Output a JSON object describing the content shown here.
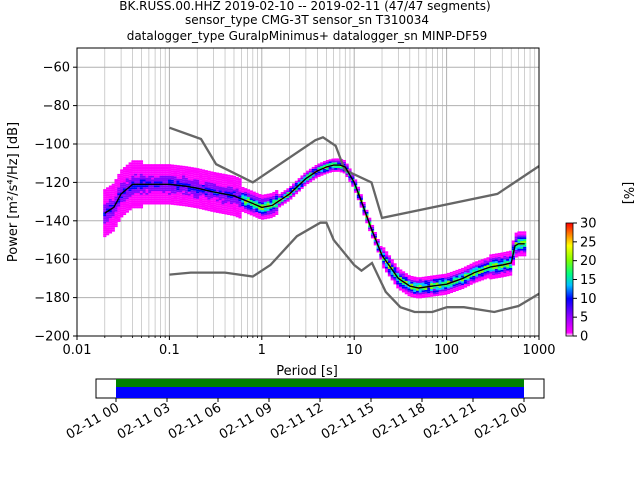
{
  "title_lines": [
    "BK.RUSS.00.HHZ   2019-02-10 -- 2019-02-11  (47/47 segments)",
    "sensor_type CMG-3T sensor_sn T310034",
    "datalogger_type GuralpMinimus+ datalogger_sn MINP-DF59"
  ],
  "colors": {
    "noise_model": "#666666",
    "mean_curve": "#000000",
    "grid": "#b0b0b0",
    "coverage_green": "#008000",
    "coverage_blue": "#0000ff"
  },
  "chart_data": {
    "type": "heatmap",
    "xlabel": "Period [s]",
    "ylabel": "Power [m²/s⁴/Hz] [dB]",
    "x_scale": "log",
    "xlim": [
      0.01,
      1000
    ],
    "ylim": [
      -200,
      -50
    ],
    "x_ticks": [
      0.01,
      0.1,
      1,
      10,
      100,
      1000
    ],
    "x_tick_labels": [
      "0.01",
      "0.1",
      "1",
      "10",
      "100",
      "1000"
    ],
    "y_ticks": [
      -200,
      -180,
      -160,
      -140,
      -120,
      -100,
      -80,
      -60
    ],
    "y_tick_labels": [
      "−200",
      "−180",
      "−160",
      "−140",
      "−120",
      "−100",
      "−80",
      "−60"
    ],
    "grid": true,
    "colorbar": {
      "label": "[%]",
      "range": [
        0,
        30
      ],
      "ticks": [
        0,
        5,
        10,
        15,
        20,
        25,
        30
      ]
    },
    "mean_curve": {
      "x": [
        0.02,
        0.025,
        0.03,
        0.04,
        0.06,
        0.1,
        0.15,
        0.2,
        0.3,
        0.5,
        0.8,
        1.0,
        1.3,
        2.0,
        3.0,
        4.0,
        5.0,
        6.0,
        7.0,
        8.0,
        10,
        12,
        15,
        20,
        30,
        40,
        50,
        70,
        100,
        150,
        200,
        300,
        400,
        500,
        550,
        600,
        700
      ],
      "y": [
        -136,
        -133,
        -126,
        -121,
        -121,
        -121,
        -122,
        -123,
        -125,
        -127,
        -131,
        -133,
        -132,
        -126,
        -118,
        -114,
        -112,
        -111,
        -111,
        -112,
        -120,
        -130,
        -143,
        -158,
        -170,
        -174,
        -175,
        -174,
        -173,
        -170,
        -167,
        -164,
        -163,
        -162,
        -153,
        -152,
        -152
      ]
    },
    "noise_models": [
      {
        "x": [
          0.1,
          0.22,
          0.32,
          0.8,
          3.8,
          4.6,
          6.3,
          7.9,
          15.4,
          20,
          354.8,
          1000
        ],
        "y": [
          -91.5,
          -97.4,
          -110.5,
          -120,
          -98,
          -96.5,
          -101,
          -113.5,
          -120,
          -138.5,
          -126,
          -111.5
        ]
      },
      {
        "x": [
          0.1,
          0.17,
          0.4,
          0.8,
          1.24,
          2.4,
          4.3,
          5.0,
          6.0,
          10,
          12,
          15.6,
          21.9,
          31.6,
          45,
          70,
          101,
          154,
          328,
          600,
          1000
        ],
        "y": [
          -168,
          -167,
          -167,
          -169,
          -163,
          -148,
          -141,
          -141,
          -150,
          -163,
          -166,
          -162,
          -177,
          -185,
          -187.5,
          -187.5,
          -185,
          -185,
          -187.5,
          -184.4,
          -178
        ]
      }
    ],
    "coverage": {
      "x_tick_labels": [
        "02-11 00",
        "02-11 03",
        "02-11 06",
        "02-11 09",
        "02-11 12",
        "02-11 15",
        "02-11 18",
        "02-11 21",
        "02-12 00"
      ]
    }
  }
}
